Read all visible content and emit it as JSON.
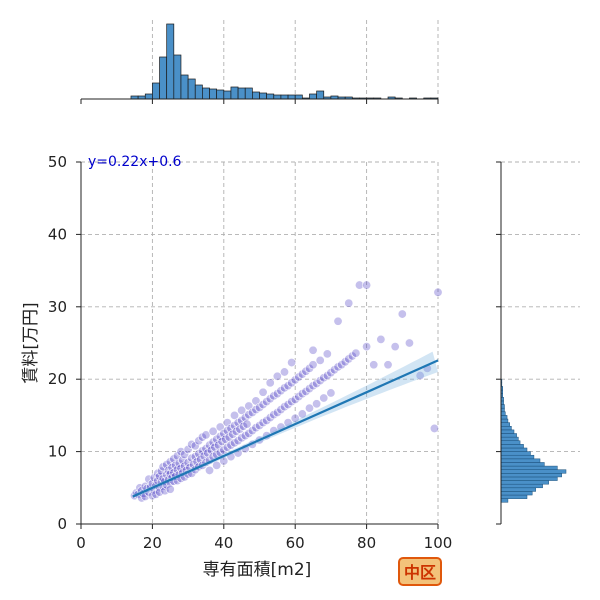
{
  "chart_data": {
    "type": "scatter",
    "subtype": "jointplot",
    "xlabel": "専有面積[m2]",
    "ylabel": "賃料[万円]",
    "xlim": [
      0,
      100
    ],
    "ylim": [
      0,
      50
    ],
    "xticks": [
      "0",
      "20",
      "40",
      "60",
      "80",
      "100"
    ],
    "yticks": [
      "0",
      "10",
      "20",
      "30",
      "40",
      "50"
    ],
    "grid": true,
    "annotation": "y=0.22x+0.6",
    "badge": "中区",
    "regression": {
      "slope": 0.22,
      "intercept": 0.6,
      "x_range": [
        14.5,
        100
      ]
    },
    "scatter_color": "#4b3cc4",
    "line_color": "#1f77b4",
    "hist_color": "#4a90c8",
    "annotation_color": "#0000cc",
    "badge_color": "#f3c27a",
    "badge_border": "#e0580c",
    "badge_text_color": "#cc3300",
    "scatter_points": [
      [
        15,
        3.9
      ],
      [
        15.5,
        4.3
      ],
      [
        16,
        4.1
      ],
      [
        16.5,
        5.0
      ],
      [
        17,
        3.6
      ],
      [
        17,
        4.6
      ],
      [
        17.5,
        4.2
      ],
      [
        18,
        5.2
      ],
      [
        18,
        3.8
      ],
      [
        18.5,
        4.9
      ],
      [
        19,
        4.4
      ],
      [
        19,
        6.2
      ],
      [
        19.5,
        5.1
      ],
      [
        20,
        3.9
      ],
      [
        20,
        5.6
      ],
      [
        20.5,
        4.7
      ],
      [
        20.5,
        6.4
      ],
      [
        21,
        5.3
      ],
      [
        21,
        4.1
      ],
      [
        21.5,
        6.0
      ],
      [
        21.5,
        7.0
      ],
      [
        22,
        5.0
      ],
      [
        22,
        6.6
      ],
      [
        22,
        4.4
      ],
      [
        22.5,
        5.8
      ],
      [
        22.5,
        7.3
      ],
      [
        23,
        5.2
      ],
      [
        23,
        6.3
      ],
      [
        23,
        7.9
      ],
      [
        23.5,
        5.9
      ],
      [
        23.5,
        4.6
      ],
      [
        24,
        6.8
      ],
      [
        24,
        5.4
      ],
      [
        24,
        8.2
      ],
      [
        24.5,
        6.1
      ],
      [
        24.5,
        7.4
      ],
      [
        25,
        5.7
      ],
      [
        25,
        6.9
      ],
      [
        25,
        8.6
      ],
      [
        25,
        4.8
      ],
      [
        25.5,
        6.4
      ],
      [
        25.5,
        7.8
      ],
      [
        26,
        5.9
      ],
      [
        26,
        7.1
      ],
      [
        26,
        9.0
      ],
      [
        26.5,
        6.6
      ],
      [
        26.5,
        8.1
      ],
      [
        27,
        6.0
      ],
      [
        27,
        7.5
      ],
      [
        27,
        9.4
      ],
      [
        27.5,
        6.8
      ],
      [
        27.5,
        8.4
      ],
      [
        28,
        6.3
      ],
      [
        28,
        7.7
      ],
      [
        28,
        10.0
      ],
      [
        28.5,
        7.1
      ],
      [
        28.5,
        8.8
      ],
      [
        29,
        6.5
      ],
      [
        29,
        8.0
      ],
      [
        29,
        9.6
      ],
      [
        29.5,
        7.4
      ],
      [
        30,
        6.9
      ],
      [
        30,
        8.5
      ],
      [
        30,
        10.3
      ],
      [
        30.5,
        7.8
      ],
      [
        31,
        7.0
      ],
      [
        31,
        9.1
      ],
      [
        31,
        11.0
      ],
      [
        31.5,
        8.2
      ],
      [
        32,
        7.5
      ],
      [
        32,
        9.3
      ],
      [
        32,
        10.8
      ],
      [
        32.5,
        8.6
      ],
      [
        33,
        7.9
      ],
      [
        33,
        9.7
      ],
      [
        33,
        11.5
      ],
      [
        33.5,
        8.9
      ],
      [
        34,
        8.1
      ],
      [
        34,
        10.1
      ],
      [
        34,
        12.0
      ],
      [
        34.5,
        9.4
      ],
      [
        35,
        8.5
      ],
      [
        35,
        10.4
      ],
      [
        35,
        12.3
      ],
      [
        35.5,
        9.8
      ],
      [
        36,
        8.8
      ],
      [
        36,
        10.9
      ],
      [
        36,
        7.4
      ],
      [
        36.5,
        10.2
      ],
      [
        37,
        9.3
      ],
      [
        37,
        11.3
      ],
      [
        37,
        12.8
      ],
      [
        37.5,
        10.6
      ],
      [
        38,
        9.6
      ],
      [
        38,
        11.7
      ],
      [
        38,
        8.1
      ],
      [
        38.5,
        10.9
      ],
      [
        39,
        9.9
      ],
      [
        39,
        12.1
      ],
      [
        39,
        13.4
      ],
      [
        39.5,
        11.4
      ],
      [
        40,
        10.2
      ],
      [
        40,
        12.5
      ],
      [
        40,
        8.7
      ],
      [
        40.5,
        11.7
      ],
      [
        41,
        10.6
      ],
      [
        41,
        12.9
      ],
      [
        41,
        14.0
      ],
      [
        41.5,
        12.0
      ],
      [
        42,
        10.9
      ],
      [
        42,
        13.2
      ],
      [
        42,
        9.3
      ],
      [
        42.5,
        12.4
      ],
      [
        43,
        11.2
      ],
      [
        43,
        13.6
      ],
      [
        43,
        15.0
      ],
      [
        43.5,
        12.8
      ],
      [
        44,
        11.5
      ],
      [
        44,
        14.0
      ],
      [
        44,
        9.8
      ],
      [
        44.5,
        13.1
      ],
      [
        45,
        11.9
      ],
      [
        45,
        14.3
      ],
      [
        45,
        15.7
      ],
      [
        45.5,
        13.5
      ],
      [
        46,
        12.2
      ],
      [
        46,
        14.7
      ],
      [
        46,
        10.4
      ],
      [
        46.5,
        13.8
      ],
      [
        47,
        12.5
      ],
      [
        47,
        15.1
      ],
      [
        47,
        16.3
      ],
      [
        48,
        12.9
      ],
      [
        48,
        15.4
      ],
      [
        48,
        11.0
      ],
      [
        49,
        13.3
      ],
      [
        49,
        15.8
      ],
      [
        49,
        17.0
      ],
      [
        50,
        13.6
      ],
      [
        50,
        16.1
      ],
      [
        50,
        11.6
      ],
      [
        51,
        14.0
      ],
      [
        51,
        16.5
      ],
      [
        51,
        18.2
      ],
      [
        52,
        14.3
      ],
      [
        52,
        16.9
      ],
      [
        52,
        12.2
      ],
      [
        53,
        14.7
      ],
      [
        53,
        17.3
      ],
      [
        53,
        19.5
      ],
      [
        54,
        15.1
      ],
      [
        54,
        17.7
      ],
      [
        54,
        12.9
      ],
      [
        55,
        15.4
      ],
      [
        55,
        18.0
      ],
      [
        55,
        20.4
      ],
      [
        56,
        15.8
      ],
      [
        56,
        18.4
      ],
      [
        56,
        13.4
      ],
      [
        57,
        16.2
      ],
      [
        57,
        18.8
      ],
      [
        57,
        21.0
      ],
      [
        58,
        16.5
      ],
      [
        58,
        19.1
      ],
      [
        58,
        14.0
      ],
      [
        59,
        16.9
      ],
      [
        59,
        19.5
      ],
      [
        59,
        22.3
      ],
      [
        60,
        17.2
      ],
      [
        60,
        19.9
      ],
      [
        60,
        14.6
      ],
      [
        61,
        17.6
      ],
      [
        61,
        20.3
      ],
      [
        62,
        18.0
      ],
      [
        62,
        20.7
      ],
      [
        62,
        15.2
      ],
      [
        63,
        18.3
      ],
      [
        63,
        21.1
      ],
      [
        64,
        18.7
      ],
      [
        64,
        21.5
      ],
      [
        64,
        16.0
      ],
      [
        65,
        19.1
      ],
      [
        65,
        22.0
      ],
      [
        65,
        24.0
      ],
      [
        66,
        19.4
      ],
      [
        66,
        16.6
      ],
      [
        67,
        19.8
      ],
      [
        67,
        22.6
      ],
      [
        68,
        20.2
      ],
      [
        68,
        17.4
      ],
      [
        69,
        20.5
      ],
      [
        69,
        23.5
      ],
      [
        70,
        20.9
      ],
      [
        70,
        18.1
      ],
      [
        71,
        21.3
      ],
      [
        72,
        21.7
      ],
      [
        72,
        28.0
      ],
      [
        73,
        22.0
      ],
      [
        74,
        22.4
      ],
      [
        75,
        22.8
      ],
      [
        75,
        30.5
      ],
      [
        76,
        23.2
      ],
      [
        77,
        23.6
      ],
      [
        78,
        33.0
      ],
      [
        80,
        24.5
      ],
      [
        80,
        33.0
      ],
      [
        82,
        22.0
      ],
      [
        84,
        25.5
      ],
      [
        86,
        22.0
      ],
      [
        88,
        24.5
      ],
      [
        90,
        29.0
      ],
      [
        92,
        25.0
      ],
      [
        95,
        20.5
      ],
      [
        97,
        21.5
      ],
      [
        99,
        13.2
      ],
      [
        100,
        32.0
      ]
    ],
    "hist_x": {
      "bin_edges": [
        14,
        16,
        18,
        20,
        22,
        24,
        26,
        28,
        30,
        32,
        34,
        36,
        38,
        40,
        42,
        44,
        46,
        48,
        50,
        52,
        54,
        56,
        58,
        60,
        62,
        64,
        66,
        68,
        70,
        72,
        74,
        76,
        78,
        80,
        82,
        84,
        86,
        88,
        90,
        92,
        94,
        96,
        98,
        100
      ],
      "counts": [
        3,
        3,
        5,
        16,
        42,
        75,
        44,
        24,
        20,
        14,
        11,
        10,
        9,
        8,
        12,
        11,
        11,
        7,
        6,
        5,
        4,
        4,
        4,
        4,
        1,
        5,
        8,
        2,
        3,
        2,
        2,
        1,
        1,
        1,
        1,
        0,
        2,
        1,
        0,
        1,
        0,
        1,
        1
      ]
    },
    "hist_y": {
      "bin_edges": [
        3,
        3.5,
        4,
        4.5,
        5,
        5.5,
        6,
        6.5,
        7,
        7.5,
        8,
        8.5,
        9,
        9.5,
        10,
        10.5,
        11,
        11.5,
        12,
        12.5,
        13,
        13.5,
        14,
        14.5,
        15,
        15.5,
        16,
        16.5,
        17,
        17.5,
        18,
        18.5,
        19,
        19.5,
        20
      ],
      "counts": [
        8,
        30,
        36,
        40,
        48,
        55,
        65,
        70,
        75,
        65,
        50,
        45,
        38,
        34,
        30,
        26,
        22,
        20,
        18,
        15,
        12,
        10,
        8,
        7,
        5,
        4,
        4,
        3,
        3,
        2,
        2,
        2,
        1,
        1
      ]
    }
  }
}
